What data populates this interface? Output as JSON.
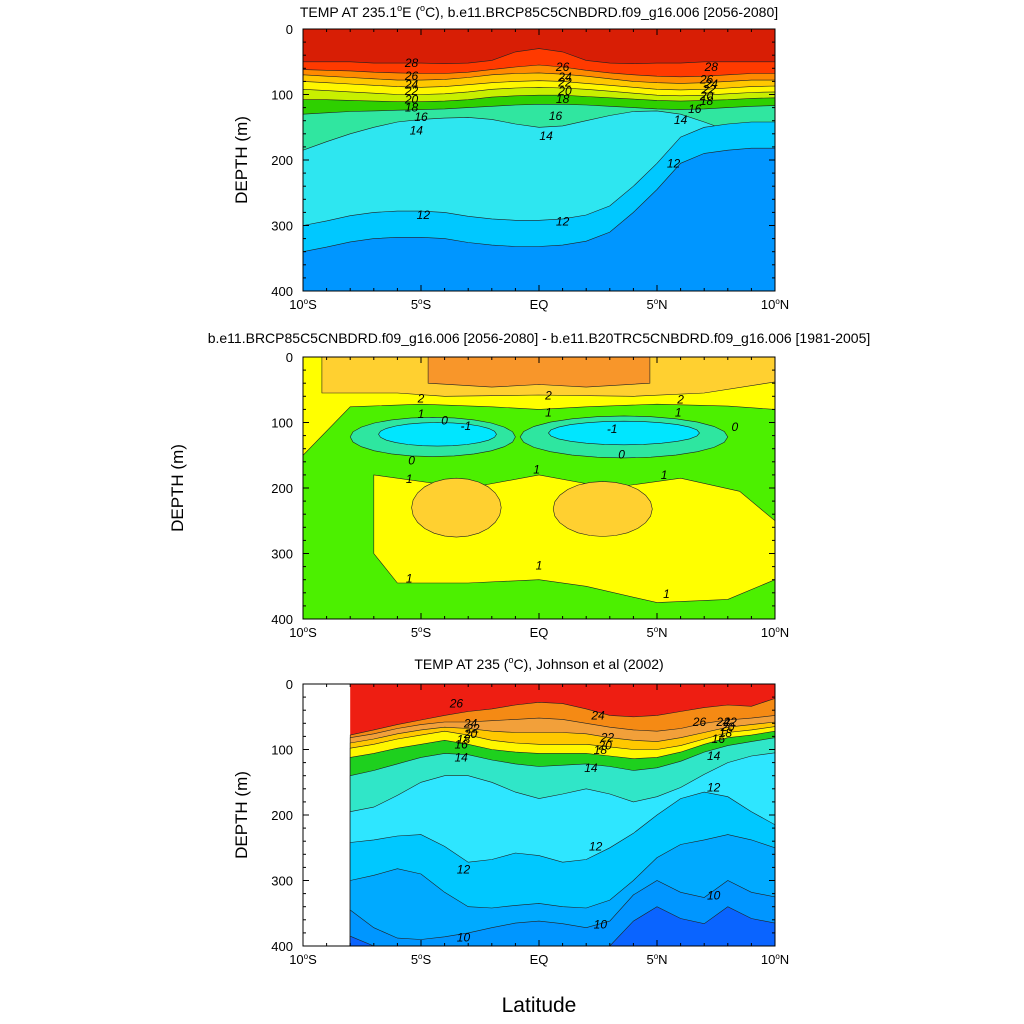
{
  "figure": {
    "xlabel": "Latitude"
  },
  "chart_data": [
    {
      "type": "heatmap",
      "subtype": "filled-contour",
      "title": "TEMP AT 235.1°E (°C), b.e11.BRCP85C5CNBDRD.f09_g16.006 [2056-2080]",
      "title_parts": {
        "pre": "TEMP AT 235.1",
        "deg1": "o",
        "mid": "E (",
        "deg2": "o",
        "post": "C), b.e11.BRCP85C5CNBDRD.f09_g16.006 [2056-2080]"
      },
      "xlabel": "",
      "ylabel": "DEPTH (m)",
      "xlim": [
        -10,
        10
      ],
      "ylim": [
        400,
        0
      ],
      "xticks": [
        {
          "value": -10,
          "label": "10",
          "deg": "o",
          "suffix": "S"
        },
        {
          "value": -5,
          "label": "5",
          "deg": "o",
          "suffix": "S"
        },
        {
          "value": 0,
          "label": "EQ",
          "deg": "",
          "suffix": ""
        },
        {
          "value": 5,
          "label": "5",
          "deg": "o",
          "suffix": "N"
        },
        {
          "value": 10,
          "label": "10",
          "deg": "o",
          "suffix": "N"
        }
      ],
      "yticks": [
        0,
        100,
        200,
        300,
        400
      ],
      "contours": [
        {
          "level": 28,
          "depth": [
            50,
            50,
            50,
            52,
            52,
            52,
            53,
            52,
            48,
            35,
            30,
            35,
            48,
            52,
            53,
            52,
            52,
            50,
            50,
            50,
            50
          ]
        },
        {
          "level": 26,
          "depth": [
            62,
            63,
            64,
            66,
            67,
            68,
            68,
            66,
            62,
            58,
            55,
            58,
            63,
            67,
            70,
            72,
            73,
            72,
            70,
            68,
            68
          ]
        },
        {
          "level": 24,
          "depth": [
            70,
            72,
            74,
            76,
            78,
            78,
            77,
            74,
            70,
            68,
            67,
            69,
            72,
            76,
            80,
            82,
            83,
            82,
            80,
            78,
            78
          ]
        },
        {
          "level": 22,
          "depth": [
            80,
            82,
            84,
            86,
            88,
            89,
            88,
            85,
            82,
            80,
            79,
            80,
            83,
            86,
            89,
            92,
            93,
            92,
            90,
            88,
            87
          ]
        },
        {
          "level": 20,
          "depth": [
            92,
            94,
            96,
            98,
            100,
            100,
            99,
            96,
            92,
            90,
            89,
            90,
            92,
            95,
            98,
            101,
            102,
            101,
            99,
            97,
            96
          ]
        },
        {
          "level": 18,
          "depth": [
            108,
            108,
            109,
            110,
            111,
            111,
            110,
            108,
            104,
            102,
            101,
            101,
            103,
            105,
            107,
            109,
            110,
            109,
            108,
            106,
            105
          ]
        },
        {
          "level": 16,
          "depth": [
            130,
            128,
            126,
            125,
            124,
            123,
            122,
            120,
            118,
            116,
            115,
            115,
            116,
            118,
            120,
            122,
            123,
            122,
            120,
            118,
            117
          ]
        },
        {
          "level": 14,
          "depth": [
            185,
            172,
            160,
            150,
            142,
            138,
            136,
            135,
            138,
            145,
            150,
            148,
            140,
            132,
            126,
            125,
            130,
            142,
            155,
            165,
            172
          ]
        },
        {
          "level": 12,
          "depth": [
            300,
            293,
            285,
            280,
            278,
            278,
            280,
            286,
            290,
            292,
            292,
            290,
            284,
            270,
            240,
            205,
            165,
            150,
            145,
            142,
            142
          ]
        }
      ],
      "colors": {
        "top": "#d81e05",
        "28": "#ff3a00",
        "26": "#ff8a00",
        "24": "#ffc800",
        "22": "#fff700",
        "20": "#c8f000",
        "18": "#2ed000",
        "16": "#30e6a0",
        "14": "#2ee6f0",
        "12": "#00c8ff",
        "bottom": "#0096ff"
      },
      "contour_labels": [
        {
          "text": "28",
          "x": -5.4,
          "depth": 52
        },
        {
          "text": "26",
          "x": -5.4,
          "depth": 72
        },
        {
          "text": "24",
          "x": -5.4,
          "depth": 85
        },
        {
          "text": "22",
          "x": -5.4,
          "depth": 95
        },
        {
          "text": "20",
          "x": -5.4,
          "depth": 108
        },
        {
          "text": "18",
          "x": -5.4,
          "depth": 120
        },
        {
          "text": "16",
          "x": -5.0,
          "depth": 134
        },
        {
          "text": "14",
          "x": -5.2,
          "depth": 155
        },
        {
          "text": "12",
          "x": -4.9,
          "depth": 284
        },
        {
          "text": "26",
          "x": 1.0,
          "depth": 58
        },
        {
          "text": "24",
          "x": 1.1,
          "depth": 73
        },
        {
          "text": "22",
          "x": 1.1,
          "depth": 82
        },
        {
          "text": "20",
          "x": 1.1,
          "depth": 95
        },
        {
          "text": "18",
          "x": 1.0,
          "depth": 107
        },
        {
          "text": "16",
          "x": 0.7,
          "depth": 133
        },
        {
          "text": "14",
          "x": 0.3,
          "depth": 163
        },
        {
          "text": "12",
          "x": 1.0,
          "depth": 294
        },
        {
          "text": "28",
          "x": 7.3,
          "depth": 58
        },
        {
          "text": "26",
          "x": 7.1,
          "depth": 77
        },
        {
          "text": "24",
          "x": 7.3,
          "depth": 84
        },
        {
          "text": "22",
          "x": 7.2,
          "depth": 92
        },
        {
          "text": "20",
          "x": 7.1,
          "depth": 102
        },
        {
          "text": "18",
          "x": 7.1,
          "depth": 110
        },
        {
          "text": "16",
          "x": 6.6,
          "depth": 122
        },
        {
          "text": "14",
          "x": 6.0,
          "depth": 139
        },
        {
          "text": "12",
          "x": 5.7,
          "depth": 205
        }
      ]
    },
    {
      "type": "heatmap",
      "subtype": "filled-contour",
      "title": "b.e11.BRCP85C5CNBDRD.f09_g16.006 [2056-2080] - b.e11.B20TRC5CNBDRD.f09_g16.006 [1981-2005]",
      "title_parts": {
        "pre": "b.e11.BRCP85C5CNBDRD.f09_g16.006 [2056-2080] - b.e11.B20TRC5CNBDRD.f09_g16.006 [1981-2005]",
        "deg1": "",
        "mid": "",
        "deg2": "",
        "post": ""
      },
      "xlabel": "",
      "ylabel": "DEPTH (m)",
      "xlim": [
        -10,
        10
      ],
      "ylim": [
        400,
        0
      ],
      "xticks": [
        {
          "value": -10,
          "label": "10",
          "deg": "o",
          "suffix": "S"
        },
        {
          "value": -5,
          "label": "5",
          "deg": "o",
          "suffix": "S"
        },
        {
          "value": 0,
          "label": "EQ",
          "deg": "",
          "suffix": ""
        },
        {
          "value": 5,
          "label": "5",
          "deg": "o",
          "suffix": "N"
        },
        {
          "value": 10,
          "label": "10",
          "deg": "o",
          "suffix": "N"
        }
      ],
      "yticks": [
        0,
        100,
        200,
        300,
        400
      ],
      "layers": [
        {
          "level": 1,
          "color": "#4cf000",
          "region": "background below ~80 m"
        },
        {
          "level": 1.5,
          "color": "#ffff00",
          "region": "upper band and 200–380 m lobe"
        },
        {
          "level": 2,
          "color": "#ffd030",
          "region": "near-surface band and two lobes near 220 m"
        },
        {
          "level": 2.5,
          "color": "#f8962a",
          "region": "surface core 2S–5N"
        },
        {
          "level": 0,
          "color": "#2ee6a0",
          "region": "cores near 5S and 3N at 110–130 m"
        },
        {
          "level": -1,
          "color": "#00e6ff",
          "region": "innermost cores"
        }
      ],
      "contour_labels": [
        {
          "text": "2",
          "x": -5.0,
          "depth": 63
        },
        {
          "text": "1",
          "x": -5.0,
          "depth": 87
        },
        {
          "text": "0",
          "x": -4.0,
          "depth": 97
        },
        {
          "text": "-1",
          "x": -3.1,
          "depth": 105
        },
        {
          "text": "0",
          "x": -5.4,
          "depth": 158
        },
        {
          "text": "1",
          "x": -5.5,
          "depth": 186
        },
        {
          "text": "2",
          "x": 0.4,
          "depth": 59
        },
        {
          "text": "1",
          "x": 0.4,
          "depth": 85
        },
        {
          "text": "1",
          "x": -0.1,
          "depth": 172
        },
        {
          "text": "-1",
          "x": 3.1,
          "depth": 110
        },
        {
          "text": "0",
          "x": 3.5,
          "depth": 149
        },
        {
          "text": "1",
          "x": 5.3,
          "depth": 180
        },
        {
          "text": "2",
          "x": 6.0,
          "depth": 65
        },
        {
          "text": "1",
          "x": 5.9,
          "depth": 85
        },
        {
          "text": "0",
          "x": 8.3,
          "depth": 107
        },
        {
          "text": "1",
          "x": -5.5,
          "depth": 338
        },
        {
          "text": "1",
          "x": 0.0,
          "depth": 318
        },
        {
          "text": "1",
          "x": 5.4,
          "depth": 362
        }
      ]
    },
    {
      "type": "heatmap",
      "subtype": "filled-contour",
      "title": "TEMP AT 235 (°C), Johnson et al (2002)",
      "title_parts": {
        "pre": "TEMP AT 235 (",
        "deg1": "o",
        "mid": "C), Johnson et al (2002)",
        "deg2": "",
        "post": ""
      },
      "xlabel": "Latitude",
      "ylabel": "DEPTH (m)",
      "xlim": [
        -10,
        10
      ],
      "ylim": [
        400,
        0
      ],
      "data_xrange": [
        -8,
        10
      ],
      "xticks": [
        {
          "value": -10,
          "label": "10",
          "deg": "o",
          "suffix": "S"
        },
        {
          "value": -5,
          "label": "5",
          "deg": "o",
          "suffix": "S"
        },
        {
          "value": 0,
          "label": "EQ",
          "deg": "",
          "suffix": ""
        },
        {
          "value": 5,
          "label": "5",
          "deg": "o",
          "suffix": "N"
        },
        {
          "value": 10,
          "label": "10",
          "deg": "o",
          "suffix": "N"
        }
      ],
      "yticks": [
        0,
        100,
        200,
        300,
        400
      ],
      "contours": [
        {
          "level": 26,
          "depth": [
            78,
            70,
            62,
            55,
            48,
            42,
            38,
            32,
            28,
            30,
            38,
            48,
            50,
            48,
            42,
            36,
            32,
            34,
            22
          ]
        },
        {
          "level": 24,
          "depth": [
            82,
            76,
            68,
            62,
            58,
            58,
            56,
            54,
            52,
            54,
            60,
            66,
            70,
            72,
            68,
            60,
            55,
            52,
            48
          ]
        },
        {
          "level": 22,
          "depth": [
            90,
            84,
            76,
            70,
            66,
            68,
            72,
            74,
            74,
            74,
            76,
            82,
            86,
            88,
            82,
            74,
            66,
            62,
            58
          ]
        },
        {
          "level": 20,
          "depth": [
            98,
            92,
            84,
            78,
            72,
            78,
            86,
            90,
            92,
            92,
            92,
            96,
            100,
            100,
            94,
            84,
            74,
            70,
            65
          ]
        },
        {
          "level": 16,
          "depth": [
            112,
            106,
            98,
            92,
            86,
            92,
            100,
            104,
            106,
            106,
            106,
            110,
            114,
            112,
            104,
            92,
            82,
            78,
            72
          ]
        },
        {
          "level": 14,
          "depth": [
            140,
            132,
            122,
            112,
            106,
            108,
            116,
            122,
            126,
            124,
            122,
            126,
            132,
            128,
            118,
            104,
            94,
            88,
            82
          ]
        },
        {
          "level": 13,
          "depth": [
            195,
            188,
            170,
            150,
            140,
            140,
            150,
            165,
            175,
            168,
            160,
            168,
            180,
            172,
            158,
            138,
            120,
            110,
            105
          ]
        },
        {
          "level": 12,
          "depth": [
            242,
            238,
            232,
            230,
            248,
            272,
            268,
            258,
            262,
            272,
            268,
            250,
            228,
            200,
            175,
            165,
            172,
            195,
            215
          ]
        },
        {
          "level": 11,
          "depth": [
            300,
            292,
            282,
            290,
            318,
            340,
            342,
            338,
            335,
            340,
            342,
            330,
            300,
            265,
            245,
            238,
            230,
            238,
            250
          ]
        },
        {
          "level": 10,
          "depth": [
            345,
            372,
            388,
            390,
            386,
            380,
            372,
            365,
            362,
            366,
            372,
            362,
            322,
            300,
            318,
            326,
            300,
            318,
            325
          ]
        }
      ],
      "colors": {
        "top": "#ee1e12",
        "26": "#f58a14",
        "24": "#f2a03a",
        "22": "#ffc800",
        "20": "#fff700",
        "16": "#1ed01e",
        "14": "#30e6c8",
        "13": "#2ee6ff",
        "12": "#00c8ff",
        "11": "#00aaff",
        "10": "#0096ff",
        "bottom": "#0a64ff"
      },
      "contour_labels": [
        {
          "text": "26",
          "x": -3.5,
          "depth": 30
        },
        {
          "text": "24",
          "x": -2.9,
          "depth": 60
        },
        {
          "text": "22",
          "x": -2.8,
          "depth": 68
        },
        {
          "text": "20",
          "x": -2.9,
          "depth": 76
        },
        {
          "text": "18",
          "x": -3.2,
          "depth": 85
        },
        {
          "text": "16",
          "x": -3.3,
          "depth": 92
        },
        {
          "text": "14",
          "x": -3.3,
          "depth": 112
        },
        {
          "text": "12",
          "x": -3.2,
          "depth": 283
        },
        {
          "text": "10",
          "x": -3.2,
          "depth": 387
        },
        {
          "text": "24",
          "x": 2.5,
          "depth": 48
        },
        {
          "text": "22",
          "x": 2.9,
          "depth": 82
        },
        {
          "text": "20",
          "x": 2.8,
          "depth": 94
        },
        {
          "text": "18",
          "x": 2.6,
          "depth": 101
        },
        {
          "text": "14",
          "x": 2.2,
          "depth": 128
        },
        {
          "text": "12",
          "x": 2.4,
          "depth": 248
        },
        {
          "text": "10",
          "x": 2.6,
          "depth": 367
        },
        {
          "text": "26",
          "x": 6.8,
          "depth": 58
        },
        {
          "text": "24",
          "x": 7.8,
          "depth": 58
        },
        {
          "text": "22",
          "x": 8.1,
          "depth": 58
        },
        {
          "text": "20",
          "x": 8.0,
          "depth": 66
        },
        {
          "text": "18",
          "x": 7.9,
          "depth": 75
        },
        {
          "text": "16",
          "x": 7.6,
          "depth": 84
        },
        {
          "text": "14",
          "x": 7.4,
          "depth": 110
        },
        {
          "text": "12",
          "x": 7.4,
          "depth": 158
        },
        {
          "text": "10",
          "x": 7.4,
          "depth": 323
        }
      ]
    }
  ]
}
